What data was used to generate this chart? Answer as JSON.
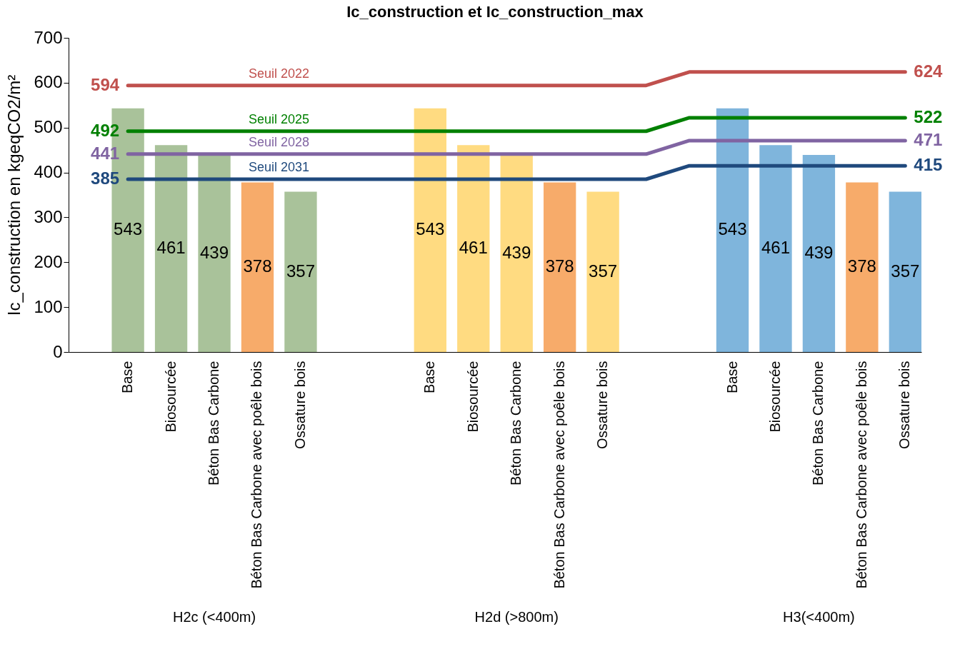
{
  "chart_data": {
    "type": "bar",
    "title": "Ic_construction et Ic_construction_max",
    "ylabel": "Ic_construction en kgeqCO2/m²",
    "categories": [
      null,
      "Base",
      "Biosourcée",
      "Béton Bas Carbone",
      "Béton Bas Carbone avec poêle bois",
      "Ossature bois",
      null,
      null,
      "Base",
      "Biosourcée",
      "Béton Bas Carbone",
      "Béton Bas Carbone avec poêle bois",
      "Ossature bois",
      null,
      null,
      "Base",
      "Biosourcée",
      "Béton Bas Carbone",
      "Béton Bas Carbone avec poêle bois",
      "Ossature bois"
    ],
    "series": [
      {
        "values": [
          null,
          543,
          461,
          439,
          378,
          357,
          null,
          null,
          543,
          461,
          439,
          378,
          357,
          null,
          null,
          543,
          461,
          439,
          378,
          357
        ],
        "colors": [
          null,
          "#a9c29a",
          "#a9c29a",
          "#a9c29a",
          "#f7ab6a",
          "#a9c29a",
          null,
          null,
          "#ffdb81",
          "#ffdb81",
          "#ffdb81",
          "#f7ab6a",
          "#ffdb81",
          null,
          null,
          "#7fb5dc",
          "#7fb5dc",
          "#7fb5dc",
          "#f7ab6a",
          "#7fb5dc"
        ]
      },
      {
        "type": "line",
        "name": "Seuil 2022",
        "color": "#c0504d",
        "values": [
          null,
          594,
          594,
          594,
          594,
          594,
          594,
          594,
          594,
          594,
          594,
          594,
          594,
          594,
          624,
          624,
          624,
          624,
          624,
          624
        ],
        "value_labels": [
          null,
          "594",
          null,
          null,
          null,
          null,
          null,
          null,
          null,
          null,
          null,
          null,
          null,
          null,
          null,
          null,
          null,
          null,
          null,
          "624"
        ]
      },
      {
        "type": "line",
        "name": "Seuil 2025",
        "color": "#008000",
        "values": [
          null,
          492,
          492,
          492,
          492,
          492,
          492,
          492,
          492,
          492,
          492,
          492,
          492,
          492,
          522,
          522,
          522,
          522,
          522,
          522
        ],
        "value_labels": [
          null,
          "492",
          null,
          null,
          null,
          null,
          null,
          null,
          null,
          null,
          null,
          null,
          null,
          null,
          null,
          null,
          null,
          null,
          null,
          "522"
        ]
      },
      {
        "type": "line",
        "name": "Seuil 2028",
        "color": "#8064a2",
        "values": [
          null,
          441,
          441,
          441,
          441,
          441,
          441,
          441,
          441,
          441,
          441,
          441,
          441,
          441,
          471,
          471,
          471,
          471,
          471,
          471
        ],
        "value_labels": [
          null,
          "441",
          null,
          null,
          null,
          null,
          null,
          null,
          null,
          null,
          null,
          null,
          null,
          null,
          null,
          null,
          null,
          null,
          null,
          "471"
        ]
      },
      {
        "type": "line",
        "name": "Seuil 2031",
        "color": "#1f497d",
        "values": [
          null,
          385,
          385,
          385,
          385,
          385,
          385,
          385,
          385,
          385,
          385,
          385,
          385,
          385,
          415,
          415,
          415,
          415,
          415,
          415
        ],
        "value_labels": [
          null,
          "385",
          null,
          null,
          null,
          null,
          null,
          null,
          null,
          null,
          null,
          null,
          null,
          null,
          null,
          null,
          null,
          null,
          null,
          "415"
        ]
      }
    ],
    "data_labels": true,
    "ylim": [
      0,
      700
    ],
    "yticks": [
      0,
      100,
      200,
      300,
      400,
      500,
      600,
      700
    ],
    "grid": false,
    "annotations": [
      "H2c (<400m)",
      "H2d (>800m)",
      "H3(<400m)"
    ]
  }
}
